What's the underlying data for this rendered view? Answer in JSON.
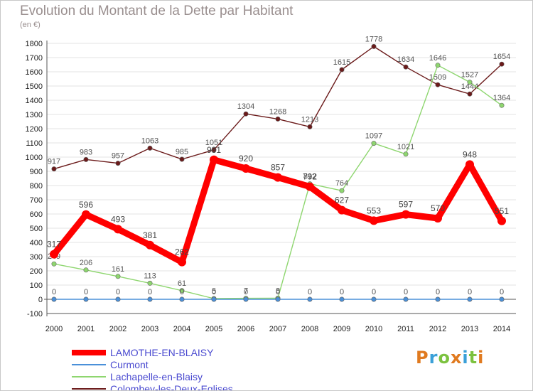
{
  "chart_data": {
    "type": "line",
    "title": "Evolution du Montant de la Dette par Habitant",
    "subtitle": "(en €)",
    "ylim": [
      -100,
      1800
    ],
    "yticks": [
      -100,
      0,
      100,
      200,
      300,
      400,
      500,
      600,
      700,
      800,
      900,
      1000,
      1100,
      1200,
      1300,
      1400,
      1500,
      1600,
      1700,
      1800
    ],
    "grid": true,
    "legend_position": "bottom-left",
    "categories": [
      "2000",
      "2001",
      "2002",
      "2003",
      "2004",
      "2005",
      "2006",
      "2007",
      "2008",
      "2009",
      "2010",
      "2011",
      "2012",
      "2013",
      "2014"
    ],
    "series": [
      {
        "name": "Colombey-les-Deux-Eglises",
        "color": "#6b1a1a",
        "values": [
          917,
          983,
          957,
          1063,
          985,
          1051,
          1304,
          1268,
          1213,
          1615,
          1778,
          1634,
          1509,
          1444,
          1654
        ],
        "labels": [
          "917",
          "983",
          "957",
          "1063",
          "985",
          "1051",
          "1304",
          "1268",
          "1213",
          "1615",
          "1778",
          "1634",
          "1509",
          "1444",
          "1654"
        ]
      },
      {
        "name": "Lachapelle-en-Blaisy",
        "color": "#8ed66f",
        "values": [
          249,
          206,
          161,
          113,
          61,
          5,
          7,
          8,
          812,
          764,
          1097,
          1021,
          1646,
          1527,
          1364
        ],
        "labels": [
          "249",
          "206",
          "161",
          "113",
          "61",
          "5",
          "7",
          "8",
          "812",
          "764",
          "1097",
          "1021",
          "1646",
          "1527",
          "1364"
        ]
      },
      {
        "name": "Curmont",
        "color": "#4a90d9",
        "values": [
          0,
          0,
          0,
          0,
          0,
          0,
          0,
          0,
          0,
          0,
          0,
          0,
          0,
          0,
          0
        ],
        "labels": [
          "0",
          "0",
          "0",
          "0",
          "0",
          "0",
          "0",
          "0",
          "0",
          "0",
          "0",
          "0",
          "0",
          "0",
          "0"
        ]
      },
      {
        "name": "LAMOTHE-EN-BLAISY",
        "color": "#ff0000",
        "values": [
          317,
          596,
          493,
          381,
          262,
          981,
          920,
          857,
          792,
          627,
          553,
          597,
          570,
          948,
          551
        ],
        "labels": [
          "317",
          "596",
          "493",
          "381",
          "262",
          "981",
          "920",
          "857",
          "792",
          "627",
          "553",
          "597",
          "570",
          "948",
          "551"
        ]
      }
    ]
  },
  "legend": [
    {
      "label": "LAMOTHE-EN-BLAISY",
      "color": "#ff0000"
    },
    {
      "label": "Curmont",
      "color": "#4a90d9"
    },
    {
      "label": "Lachapelle-en-Blaisy",
      "color": "#8ed66f"
    },
    {
      "label": "Colombey-les-Deux-Eglises",
      "color": "#6b1a1a"
    }
  ],
  "logo": {
    "text": "Proxiti",
    "letter_colors": [
      "#e07a1f",
      "#3aa0d8",
      "#7cc23f",
      "#e07a1f",
      "#3aa0d8",
      "#7cc23f",
      "#e07a1f"
    ]
  }
}
